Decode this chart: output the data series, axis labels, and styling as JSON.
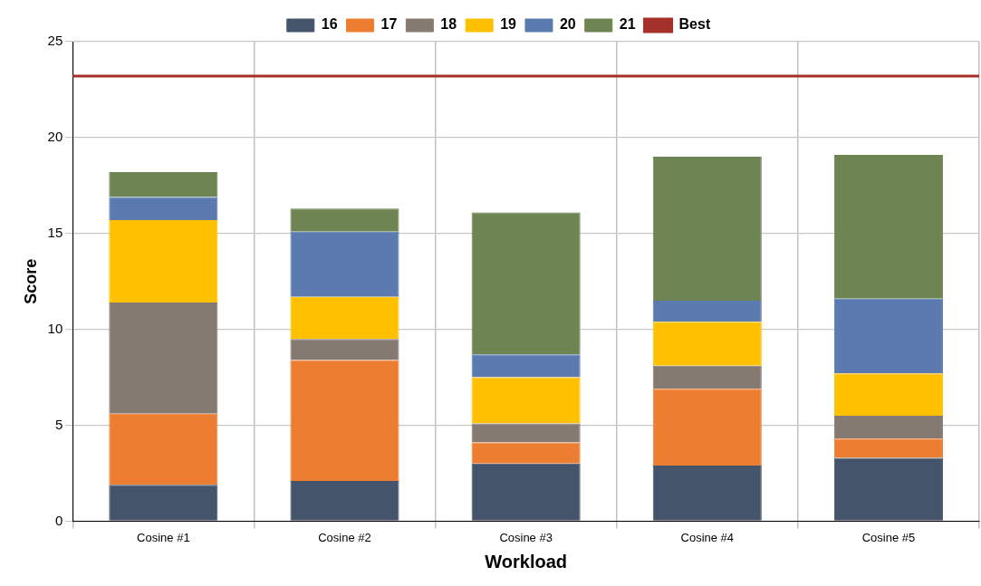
{
  "chart_data": {
    "type": "bar",
    "stacked": true,
    "xlabel": "Workload",
    "ylabel": "Score",
    "categories": [
      "Cosine #1",
      "Cosine #2",
      "Cosine #3",
      "Cosine #4",
      "Cosine #5"
    ],
    "series": [
      {
        "name": "16",
        "color": "#44546a",
        "values": [
          1.9,
          2.1,
          3.0,
          2.9,
          3.3
        ]
      },
      {
        "name": "17",
        "color": "#ed7d31",
        "values": [
          3.7,
          6.3,
          1.1,
          4.0,
          1.0
        ]
      },
      {
        "name": "18",
        "color": "#857a72",
        "values": [
          5.8,
          1.1,
          1.0,
          1.2,
          1.2
        ]
      },
      {
        "name": "19",
        "color": "#ffc000",
        "values": [
          4.3,
          2.2,
          2.4,
          2.3,
          2.2
        ]
      },
      {
        "name": "20",
        "color": "#5b7bb0",
        "values": [
          1.2,
          3.4,
          1.2,
          1.1,
          3.9
        ]
      },
      {
        "name": "21",
        "color": "#6e8452",
        "values": [
          1.3,
          1.2,
          7.4,
          7.5,
          7.5
        ]
      }
    ],
    "ref_lines": [
      {
        "axis": "y",
        "value": 23.2,
        "label": "Best",
        "color": "#a5302a"
      }
    ],
    "ylim": [
      0,
      25
    ],
    "yticks": [
      0,
      5,
      10,
      15,
      20,
      25
    ],
    "grid": true,
    "legend": "top"
  }
}
